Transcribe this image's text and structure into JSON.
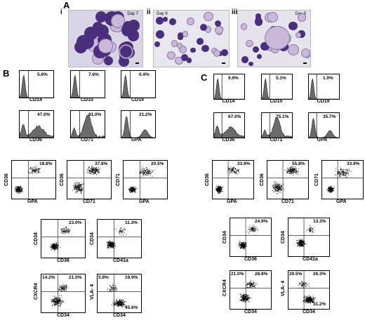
{
  "panels": {
    "A": "A",
    "B": "B",
    "C": "C"
  },
  "micrographs": [
    {
      "roman": "i",
      "day": "Day 7"
    },
    {
      "roman": "ii",
      "day": "Day 9"
    },
    {
      "roman": "iii",
      "day": "Day 9"
    }
  ],
  "colors": {
    "hist_fill": "#6b6b6b",
    "stain_dark": "#4b2f7c",
    "stain_light": "#c9b8d8",
    "bg_light": "#ecebf0"
  },
  "histograms_B": [
    {
      "label": "CD14",
      "pct": "5.6%",
      "shape": "left-peak"
    },
    {
      "label": "CD15",
      "pct": "7.6%",
      "shape": "left-peak"
    },
    {
      "label": "CD19",
      "pct": "0.4%",
      "shape": "left-peak"
    },
    {
      "label": "CD36",
      "pct": "47.0%",
      "shape": "broad"
    },
    {
      "label": "CD71",
      "pct": "81.0%",
      "shape": "right-broad"
    },
    {
      "label": "GPA",
      "pct": "21.2%",
      "shape": "bimodal"
    }
  ],
  "histograms_C": [
    {
      "label": "CD14",
      "pct": "9.9%",
      "shape": "left-peak"
    },
    {
      "label": "CD15",
      "pct": "5.1%",
      "shape": "left-peak"
    },
    {
      "label": "CD19",
      "pct": "1.0%",
      "shape": "left-peak"
    },
    {
      "label": "CD36",
      "pct": "67.0%",
      "shape": "broad"
    },
    {
      "label": "CD71",
      "pct": "75.1%",
      "shape": "right-broad"
    },
    {
      "label": "GPA",
      "pct": "35.7%",
      "shape": "bimodal"
    }
  ],
  "dots_B": [
    {
      "x": "GPA",
      "y": "CD36",
      "pct_tr": "18.8%",
      "pct_tl": "",
      "pct_br": ""
    },
    {
      "x": "CD71",
      "y": "CD36",
      "pct_tr": "37.8%",
      "pct_tl": "",
      "pct_br": ""
    },
    {
      "x": "GPA",
      "y": "CD71",
      "pct_tr": "20.5%",
      "pct_tl": "",
      "pct_br": ""
    },
    {
      "x": "CD36",
      "y": "CD34",
      "pct_tr": "23.0%",
      "pct_tl": "",
      "pct_br": ""
    },
    {
      "x": "CD41a",
      "y": "CD34",
      "pct_tr": "11.3%",
      "pct_tl": "",
      "pct_br": ""
    },
    {
      "x": "CD34",
      "y": "CXCR4",
      "pct_tr": "21.0%",
      "pct_tl": "14.2%",
      "pct_br": ""
    },
    {
      "x": "CD34",
      "y": "VLA- 4",
      "pct_tr": "19.9%",
      "pct_tl": "5.9%",
      "pct_br": "45.6%"
    }
  ],
  "dots_C": [
    {
      "x": "GPA",
      "y": "CD36",
      "pct_tr": "33.9%",
      "pct_tl": "",
      "pct_br": ""
    },
    {
      "x": "CD71",
      "y": "CD36",
      "pct_tr": "55.8%",
      "pct_tl": "",
      "pct_br": ""
    },
    {
      "x": "GPA",
      "y": "CD71",
      "pct_tr": "33.9%",
      "pct_tl": "",
      "pct_br": ""
    },
    {
      "x": "CD36",
      "y": "CD34",
      "pct_tr": "24.9%",
      "pct_tl": "",
      "pct_br": ""
    },
    {
      "x": "CD41a",
      "y": "CD34",
      "pct_tr": "13.3%",
      "pct_tl": "",
      "pct_br": ""
    },
    {
      "x": "CD34",
      "y": "CXCR4",
      "pct_tr": "28.8%",
      "pct_tl": "21.0%",
      "pct_br": ""
    },
    {
      "x": "CD34",
      "y": "VLA- 4",
      "pct_tr": "26.3%",
      "pct_tl": "20.5%",
      "pct_br": "31.2%"
    }
  ]
}
